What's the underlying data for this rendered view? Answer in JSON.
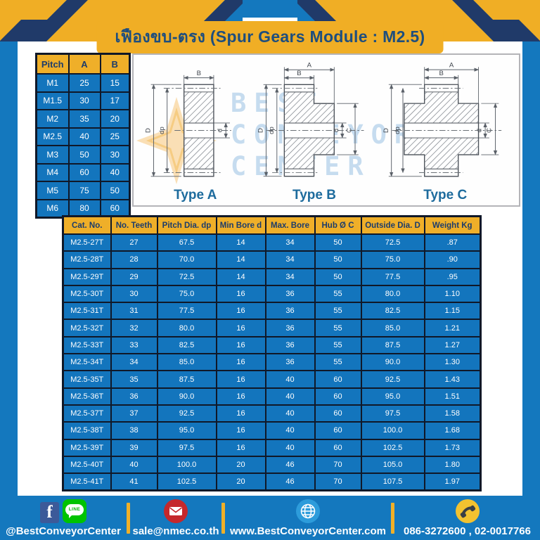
{
  "page": {
    "title": "เฟืองขบ-ตรง (Spur Gears Module : M2.5)"
  },
  "pitch_table": {
    "headers": [
      "Pitch",
      "A",
      "B"
    ],
    "rows": [
      [
        "M1",
        "25",
        "15"
      ],
      [
        "M1.5",
        "30",
        "17"
      ],
      [
        "M2",
        "35",
        "20"
      ],
      [
        "M2.5",
        "40",
        "25"
      ],
      [
        "M3",
        "50",
        "30"
      ],
      [
        "M4",
        "60",
        "40"
      ],
      [
        "M5",
        "75",
        "50"
      ],
      [
        "M6",
        "80",
        "60"
      ]
    ]
  },
  "drawings": {
    "watermark_lines": [
      "BEST",
      "CONVEYOR",
      "CENTER"
    ],
    "dims": {
      "A": "A",
      "B": "B",
      "C": "C",
      "D": "D",
      "d": "d",
      "dp": "dp"
    },
    "types": [
      {
        "label": "Type A"
      },
      {
        "label": "Type B"
      },
      {
        "label": "Type C"
      }
    ]
  },
  "spec_table": {
    "headers": [
      "Cat. No.",
      "No. Teeth",
      "Pitch Dia. dp",
      "Min Bore d",
      "Max. Bore",
      "Hub Ø C",
      "Outside Dia. D",
      "Weight Kg"
    ],
    "rows": [
      [
        "M2.5-27T",
        "27",
        "67.5",
        "14",
        "34",
        "50",
        "72.5",
        ".87"
      ],
      [
        "M2.5-28T",
        "28",
        "70.0",
        "14",
        "34",
        "50",
        "75.0",
        ".90"
      ],
      [
        "M2.5-29T",
        "29",
        "72.5",
        "14",
        "34",
        "50",
        "77.5",
        ".95"
      ],
      [
        "M2.5-30T",
        "30",
        "75.0",
        "16",
        "36",
        "55",
        "80.0",
        "1.10"
      ],
      [
        "M2.5-31T",
        "31",
        "77.5",
        "16",
        "36",
        "55",
        "82.5",
        "1.15"
      ],
      [
        "M2.5-32T",
        "32",
        "80.0",
        "16",
        "36",
        "55",
        "85.0",
        "1.21"
      ],
      [
        "M2.5-33T",
        "33",
        "82.5",
        "16",
        "36",
        "55",
        "87.5",
        "1.27"
      ],
      [
        "M2.5-34T",
        "34",
        "85.0",
        "16",
        "36",
        "55",
        "90.0",
        "1.30"
      ],
      [
        "M2.5-35T",
        "35",
        "87.5",
        "16",
        "40",
        "60",
        "92.5",
        "1.43"
      ],
      [
        "M2.5-36T",
        "36",
        "90.0",
        "16",
        "40",
        "60",
        "95.0",
        "1.51"
      ],
      [
        "M2.5-37T",
        "37",
        "92.5",
        "16",
        "40",
        "60",
        "97.5",
        "1.58"
      ],
      [
        "M2.5-38T",
        "38",
        "95.0",
        "16",
        "40",
        "60",
        "100.0",
        "1.68"
      ],
      [
        "M2.5-39T",
        "39",
        "97.5",
        "16",
        "40",
        "60",
        "102.5",
        "1.73"
      ],
      [
        "M2.5-40T",
        "40",
        "100.0",
        "20",
        "46",
        "70",
        "105.0",
        "1.80"
      ],
      [
        "M2.5-41T",
        "41",
        "102.5",
        "20",
        "46",
        "70",
        "107.5",
        "1.97"
      ]
    ]
  },
  "footer": {
    "facebook_glyph": "f",
    "line_label": "LINE",
    "facebook": "@BestConveyorCenter",
    "email": "sale@nmec.co.th",
    "website": "www.BestConveyorCenter.com",
    "phone": "086-3272600 , 02-0017766"
  },
  "colors": {
    "brand_blue": "#1478BE",
    "accent_yellow": "#F0AE25",
    "navy": "#203A69",
    "table_border": "#101828",
    "cell_blue": "#1375BD",
    "type_label_blue": "#1D6B9D"
  }
}
